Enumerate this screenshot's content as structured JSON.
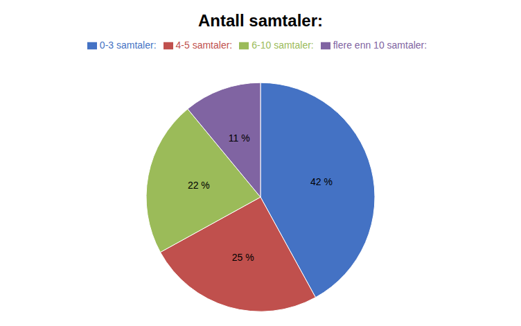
{
  "chart_data": {
    "type": "pie",
    "title": "Antall samtaler:",
    "categories": [
      "0-3 samtaler:",
      "4-5 samtaler:",
      "6-10 samtaler:",
      "flere enn 10 samtaler:"
    ],
    "values": [
      42,
      25,
      22,
      11
    ],
    "value_labels": [
      "42 %",
      "25 %",
      "22 %",
      "11 %"
    ],
    "colors": [
      "#4472C4",
      "#C0504D",
      "#9BBB59",
      "#8064A2"
    ],
    "data_labels": true,
    "legend": "top"
  }
}
